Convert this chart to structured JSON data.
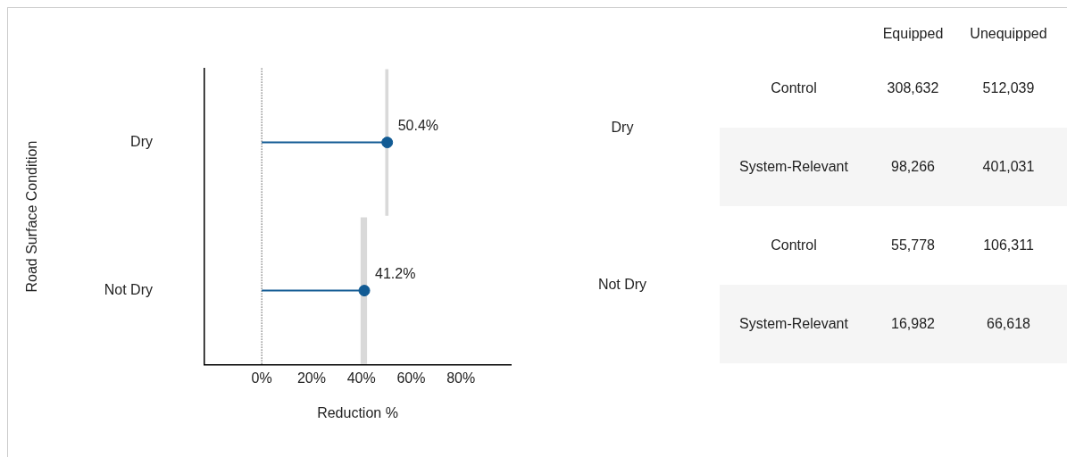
{
  "chart_data": [
    {
      "type": "lollipop",
      "orientation": "horizontal",
      "xlabel": "Reduction %",
      "ylabel": "Road Surface Condition",
      "categories": [
        "Dry",
        "Not Dry"
      ],
      "series": [
        {
          "type": "bar",
          "color": "#d9d9d9",
          "values": [
            1.3,
            2.6
          ],
          "base": [
            49.6,
            39.7
          ]
        },
        {
          "type": "lollipop",
          "color": "#125b94",
          "values": [
            50.4,
            41.2
          ],
          "marker": "circle",
          "value_labels": [
            "50.4%",
            "41.2%"
          ]
        }
      ],
      "xlim": [
        -23,
        100
      ],
      "xticks": [
        {
          "value": 0,
          "label": "0%"
        },
        {
          "value": 20,
          "label": "20%"
        },
        {
          "value": 40,
          "label": "40%"
        },
        {
          "value": 60,
          "label": "60%"
        },
        {
          "value": 80,
          "label": "80%"
        }
      ],
      "ref_lines": [
        {
          "axis": "x",
          "value": 0,
          "color": "#000000",
          "line_style": "dotted"
        }
      ]
    },
    {
      "type": "other",
      "categories": [
        "Equipped",
        "Unequipped"
      ],
      "y_categories": [
        "Control",
        "System-Relevant",
        "Control",
        "System-Relevant"
      ],
      "cell_labels": [
        [
          "308,632",
          "512,039"
        ],
        [
          "98,266",
          "401,031"
        ],
        [
          "55,778",
          "106,311"
        ],
        [
          "16,982",
          "66,618"
        ]
      ],
      "annotations": [
        "Dry",
        "Not Dry"
      ]
    }
  ]
}
